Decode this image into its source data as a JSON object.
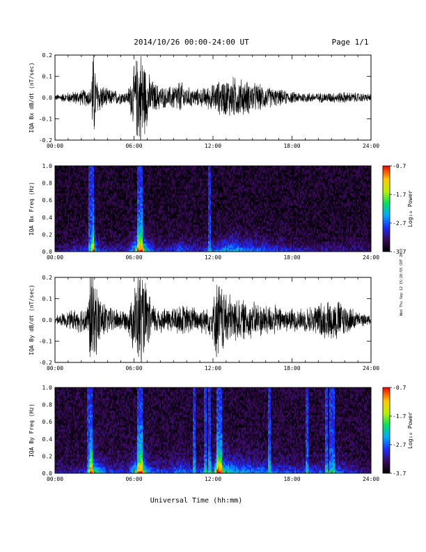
{
  "header": {
    "title": "2014/10/26  00:00-24:00 UT",
    "page": "Page 1/1"
  },
  "x_axis": {
    "tick_labels": [
      "00:00",
      "06:00",
      "12:00",
      "18:00",
      "24:00"
    ],
    "title": "Universal Time (hh:mm)"
  },
  "colorbar": {
    "label": "Log₁₀ Power",
    "tick_labels": [
      "-0.7",
      "-1.7",
      "-2.7",
      "-3.7"
    ]
  },
  "side_note": "Wed Thu Sep 12 15:28:55 CDT 2019",
  "chart_data": [
    {
      "type": "line",
      "title": "",
      "xlabel": "",
      "ylabel": "IQA Bx dB/dt (nT/sec)",
      "xlim": [
        0,
        24
      ],
      "ylim": [
        -0.2,
        0.2
      ],
      "y_tick_labels": [
        "-0.2",
        "-0.1",
        "0.0",
        "0.1",
        "0.2"
      ],
      "series": [
        {
          "x": [
            0,
            2.7,
            2.9,
            3.2,
            4,
            5.5,
            6.3,
            6.6,
            7.0,
            7.5,
            8.5,
            9.5,
            10.0,
            11.0,
            12.0,
            12.5,
            13.5,
            14.5,
            15.5,
            16.5,
            18,
            20,
            22,
            24
          ],
          "envelope": [
            0.015,
            0.05,
            0.26,
            0.09,
            0.045,
            0.03,
            0.24,
            0.26,
            0.14,
            0.08,
            0.05,
            0.09,
            0.055,
            0.045,
            0.07,
            0.09,
            0.11,
            0.09,
            0.07,
            0.05,
            0.03,
            0.025,
            0.03,
            0.02
          ]
        }
      ]
    },
    {
      "type": "heatmap",
      "title": "",
      "xlabel": "",
      "ylabel": "IQA Bx Freq (Hz)",
      "xlim": [
        0,
        24
      ],
      "ylim": [
        0,
        1.0
      ],
      "y_tick_labels": [
        "0.0",
        "0.2",
        "0.4",
        "0.6",
        "0.8",
        "1.0"
      ],
      "zlim": [
        -3.7,
        -0.7
      ],
      "vertical_lines_hours": [
        2.65,
        2.8,
        6.35,
        6.55,
        11.75
      ],
      "background_log_power": -3.55,
      "activity": {
        "x": [
          0,
          2.7,
          2.9,
          3.2,
          4,
          5.5,
          6.3,
          6.6,
          7.0,
          7.5,
          8.5,
          9.5,
          10.0,
          11.0,
          12.0,
          12.5,
          13.5,
          14.5,
          15.5,
          16.5,
          18,
          20,
          22,
          24
        ],
        "level": [
          0.1,
          0.4,
          0.9,
          0.35,
          0.25,
          0.2,
          0.85,
          0.9,
          0.5,
          0.35,
          0.25,
          0.4,
          0.3,
          0.25,
          0.35,
          0.45,
          0.55,
          0.45,
          0.4,
          0.35,
          0.25,
          0.2,
          0.2,
          0.15
        ]
      }
    },
    {
      "type": "line",
      "title": "",
      "xlabel": "",
      "ylabel": "IQA By dB/dt (nT/sec)",
      "xlim": [
        0,
        24
      ],
      "ylim": [
        -0.2,
        0.2
      ],
      "y_tick_labels": [
        "-0.2",
        "-0.1",
        "0.0",
        "0.1",
        "0.2"
      ],
      "series": [
        {
          "x": [
            0,
            2.5,
            2.7,
            3.2,
            4,
            5.5,
            6.3,
            6.6,
            7.0,
            7.5,
            8.5,
            9.5,
            10.5,
            11.5,
            12.0,
            12.3,
            12.8,
            13.5,
            14.5,
            15.5,
            16.5,
            17.5,
            19,
            20,
            21.5,
            23,
            24
          ],
          "envelope": [
            0.02,
            0.08,
            0.27,
            0.16,
            0.07,
            0.05,
            0.25,
            0.27,
            0.15,
            0.08,
            0.06,
            0.08,
            0.07,
            0.07,
            0.1,
            0.22,
            0.17,
            0.12,
            0.1,
            0.09,
            0.08,
            0.06,
            0.06,
            0.09,
            0.11,
            0.04,
            0.02
          ]
        }
      ]
    },
    {
      "type": "heatmap",
      "title": "",
      "xlabel": "",
      "ylabel": "IQA By Freq (Hz)",
      "xlim": [
        0,
        24
      ],
      "ylim": [
        0,
        1.0
      ],
      "y_tick_labels": [
        "0.0",
        "0.2",
        "0.4",
        "0.6",
        "0.8",
        "1.0"
      ],
      "zlim": [
        -3.7,
        -0.7
      ],
      "vertical_lines_hours": [
        2.55,
        2.7,
        6.3,
        6.5,
        10.6,
        11.4,
        11.75,
        12.4,
        12.55,
        16.3,
        19.1,
        20.6,
        20.9,
        21.1
      ],
      "background_log_power": -3.5,
      "activity": {
        "x": [
          0,
          2.5,
          2.7,
          3.2,
          4,
          5.5,
          6.3,
          6.6,
          7.0,
          7.5,
          8.5,
          9.5,
          10.5,
          11.5,
          12.0,
          12.3,
          12.8,
          13.5,
          14.5,
          15.5,
          16.5,
          17.5,
          19,
          20,
          21.5,
          23,
          24
        ],
        "level": [
          0.15,
          0.3,
          0.9,
          0.6,
          0.3,
          0.25,
          0.85,
          0.9,
          0.5,
          0.35,
          0.3,
          0.45,
          0.35,
          0.35,
          0.5,
          0.95,
          0.7,
          0.55,
          0.5,
          0.45,
          0.4,
          0.35,
          0.3,
          0.35,
          0.4,
          0.2,
          0.15
        ]
      }
    }
  ]
}
